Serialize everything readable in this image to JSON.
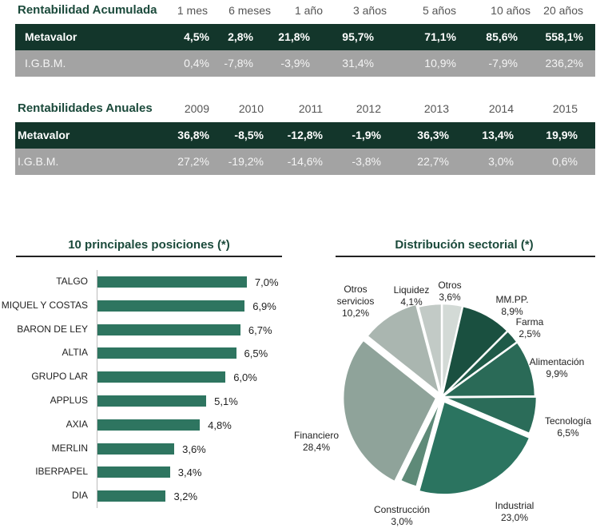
{
  "acumulada": {
    "title": "Rentabilidad Acumulada",
    "columns": [
      "1 mes",
      "6 meses",
      "1 año",
      "3 años",
      "5 años",
      "10 años",
      "20 años"
    ],
    "rows": [
      {
        "label": "Metavalor",
        "values": [
          "4,5%",
          "2,8%",
          "21,8%",
          "95,7%",
          "71,1%",
          "85,6%",
          "558,1%"
        ]
      },
      {
        "label": "I.G.B.M.",
        "values": [
          "0,4%",
          "-7,8%",
          "-3,9%",
          "31,4%",
          "10,9%",
          "-7,9%",
          "236,2%"
        ]
      }
    ]
  },
  "anuales": {
    "title": "Rentabilidades Anuales",
    "columns": [
      "2009",
      "2010",
      "2011",
      "2012",
      "2013",
      "2014",
      "2015"
    ],
    "rows": [
      {
        "label": "Metavalor",
        "values": [
          "36,8%",
          "-8,5%",
          "-12,8%",
          "-1,9%",
          "36,3%",
          "13,4%",
          "19,9%"
        ]
      },
      {
        "label": "I.G.B.M.",
        "values": [
          "27,2%",
          "-19,2%",
          "-14,6%",
          "-3,8%",
          "22,7%",
          "3,0%",
          "0,6%"
        ]
      }
    ]
  },
  "chart_data": [
    {
      "type": "bar",
      "orientation": "horizontal",
      "title": "10 principales posiciones (*)",
      "categories": [
        "TALGO",
        "MIQUEL Y COSTAS",
        "BARON DE LEY",
        "ALTIA",
        "GRUPO LAR",
        "APPLUS",
        "AXIA",
        "MERLIN",
        "IBERPAPEL",
        "DIA"
      ],
      "values": [
        7.0,
        6.9,
        6.7,
        6.5,
        6.0,
        5.1,
        4.8,
        3.6,
        3.4,
        3.2
      ],
      "labels": [
        "7,0%",
        "6,9%",
        "6,7%",
        "6,5%",
        "6,0%",
        "5,1%",
        "4,8%",
        "3,6%",
        "3,4%",
        "3,2%"
      ],
      "color": "#2e7560"
    },
    {
      "type": "pie",
      "title": "Distribución sectorial (*)",
      "slices": [
        {
          "name": "Otros",
          "value": 3.6,
          "label": "3,6%",
          "color": "#d3dad6"
        },
        {
          "name": "MM.PP.",
          "value": 8.9,
          "label": "8,9%",
          "color": "#1a5040"
        },
        {
          "name": "Farma",
          "value": 2.5,
          "label": "2,5%",
          "color": "#1f5a48"
        },
        {
          "name": "Alimentación",
          "value": 9.9,
          "label": "9,9%",
          "color": "#2a6a57"
        },
        {
          "name": "Tecnología",
          "value": 6.5,
          "label": "6,5%",
          "color": "#2b6c59"
        },
        {
          "name": "Industrial",
          "value": 23.0,
          "label": "23,0%",
          "color": "#2b7460"
        },
        {
          "name": "Construcción",
          "value": 3.0,
          "label": "3,0%",
          "color": "#5e8a78"
        },
        {
          "name": "Financiero",
          "value": 28.4,
          "label": "28,4%",
          "color": "#8fa39a"
        },
        {
          "name": "Otros servicios",
          "value": 10.2,
          "label": "10,2%",
          "color": "#aab6b0"
        },
        {
          "name": "Liquidez",
          "value": 4.1,
          "label": "4,1%",
          "color": "#c2cac6"
        }
      ]
    }
  ]
}
